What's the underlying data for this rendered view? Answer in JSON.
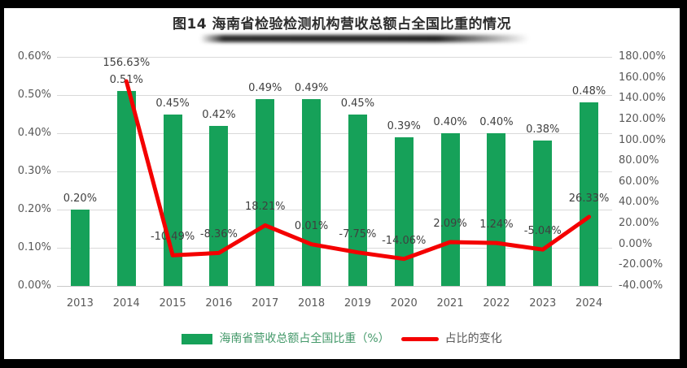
{
  "title": {
    "text": "图14 海南省检验检测机构营收总额占全国比重的情况",
    "color": "#2d2d2d"
  },
  "colors": {
    "bar_green": "#16a159",
    "line_red": "#f40000",
    "grid": "#d9d9d9",
    "tick_text": "#595959",
    "data_label_text": "#3f3f3f",
    "legend_bar_label": "#44996a",
    "legend_line_label": "#595959",
    "frame_border": "#000000"
  },
  "chart_data": {
    "type": "bar+line",
    "title": "图14 海南省检验检测机构营收总额占全国比重的情况",
    "categories": [
      "2013",
      "2014",
      "2015",
      "2016",
      "2017",
      "2018",
      "2019",
      "2020",
      "2021",
      "2022",
      "2023",
      "2024"
    ],
    "series": [
      {
        "name": "海南省营收总额占全国比重（%）",
        "type": "bar",
        "axis": "left",
        "color": "#16a159",
        "values": [
          0.2,
          0.51,
          0.45,
          0.42,
          0.49,
          0.49,
          0.45,
          0.39,
          0.4,
          0.4,
          0.38,
          0.48
        ],
        "labels": [
          "0.20%",
          "0.51%",
          "0.45%",
          "0.42%",
          "0.49%",
          "0.49%",
          "0.45%",
          "0.39%",
          "0.40%",
          "0.40%",
          "0.38%",
          "0.48%"
        ]
      },
      {
        "name": "占比的变化",
        "type": "line",
        "axis": "right",
        "color": "#f40000",
        "values": [
          null,
          156.63,
          -10.49,
          -8.36,
          18.21,
          0.01,
          -7.75,
          -14.06,
          2.09,
          1.24,
          -5.04,
          26.33
        ],
        "labels": [
          null,
          "156.63%",
          "-10.49%",
          "-8.36%",
          "18.21%",
          "0.01%",
          "-7.75%",
          "-14.06%",
          "2.09%",
          "1.24%",
          "-5.04%",
          "26.33%"
        ]
      }
    ],
    "left_axis": {
      "min": 0,
      "max": 0.6,
      "ticks": [
        "0.60%",
        "0.50%",
        "0.40%",
        "0.30%",
        "0.20%",
        "0.10%",
        "0.00%"
      ]
    },
    "right_axis": {
      "min": -40,
      "max": 180,
      "ticks": [
        "180.00%",
        "160.00%",
        "140.00%",
        "120.00%",
        "100.00%",
        "80.00%",
        "60.00%",
        "40.00%",
        "20.00%",
        "0.00%",
        "-20.00%",
        "-40.00%"
      ]
    },
    "grid": true,
    "legend_position": "bottom"
  }
}
